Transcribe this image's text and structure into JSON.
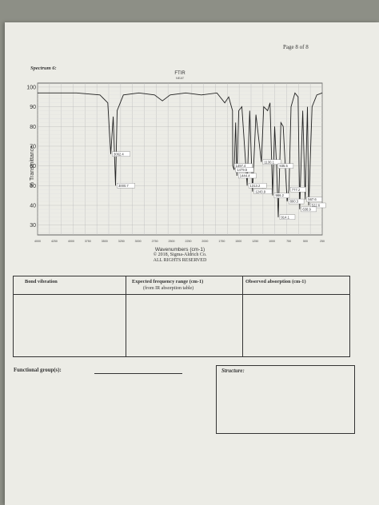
{
  "page": {
    "page_number": "Page 8 of 8",
    "spectrum_label": "Spectrum 6:"
  },
  "chart_data": {
    "type": "line",
    "title": "FTIR",
    "subtitle": "NEAT",
    "xlabel": "Wavenumbers (cm-1)",
    "ylabel": "% Transmittance",
    "x_reversed": true,
    "xlim": [
      4000,
      350
    ],
    "ylim": [
      25,
      102
    ],
    "y_ticks": [
      "100",
      "90",
      "80",
      "70",
      "60",
      "50",
      "40",
      "30"
    ],
    "x_ticks": [
      "4000",
      "4250",
      "4000",
      "3750",
      "3500",
      "3250",
      "3000",
      "2750",
      "2500",
      "2250",
      "2000",
      "1750",
      "1500",
      "1250",
      "1000",
      "750",
      "500",
      "250"
    ],
    "grid": true,
    "annotations": [
      "3062.4",
      "3000.7",
      "1497.4",
      "1444.4",
      "1479.5",
      "1130.1",
      "1243.9",
      "986.2",
      "1313.2",
      "935.5",
      "777.2",
      "567.6",
      "800.3",
      "522.6",
      "638.9",
      "914.1"
    ],
    "series": [
      {
        "x": [
          4000,
          3800,
          3500,
          3200,
          3100,
          3062,
          3030,
          3000,
          2980,
          2900,
          2700,
          2500,
          2400,
          2300,
          2100,
          1900,
          1700,
          1600,
          1550,
          1500,
          1497,
          1479,
          1460,
          1444,
          1420,
          1380,
          1313,
          1280,
          1244,
          1200,
          1130,
          1100,
          1050,
          1020,
          986,
          960,
          935,
          914,
          880,
          850,
          800,
          777,
          750,
          700,
          660,
          639,
          600,
          568,
          540,
          523,
          480,
          420,
          350
        ],
        "y": [
          97,
          97,
          97,
          96,
          92,
          66,
          85,
          50,
          88,
          96,
          97,
          96,
          93,
          96,
          97,
          96,
          97,
          92,
          95,
          88,
          60,
          58,
          82,
          55,
          88,
          90,
          50,
          88,
          47,
          86,
          62,
          90,
          88,
          92,
          45,
          80,
          60,
          34,
          82,
          80,
          42,
          48,
          90,
          97,
          95,
          38,
          88,
          43,
          90,
          40,
          90,
          96,
          97
        ]
      }
    ]
  },
  "caption": {
    "xlabel": "Wavenumbers (cm-1)",
    "copyright": "© 2018, Sigma-Aldrich Co.",
    "rights": "ALL RIGHTS RESERVED"
  },
  "table": {
    "col1_header": "Bond vibration",
    "col2_header": "Expected frequency range (cm-1)",
    "col2_sub": "(from IR absorption table)",
    "col3_header": "Observed absorption (cm-1)"
  },
  "functional_groups_label": "Functional group(s):",
  "structure_label": "Structure:"
}
